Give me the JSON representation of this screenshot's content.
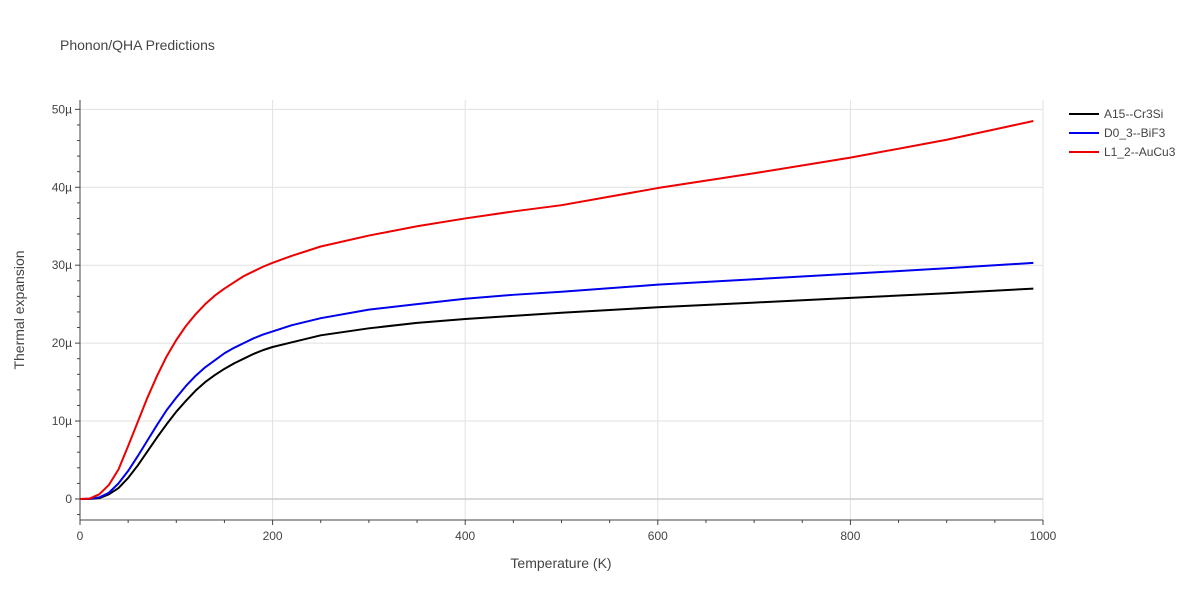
{
  "chart_data": {
    "type": "line",
    "title": "Phonon/QHA Predictions",
    "xlabel": "Temperature (K)",
    "ylabel": "Thermal expansion",
    "xlim": [
      0,
      1000
    ],
    "ylim": [
      -2.7e-06,
      5.12e-05
    ],
    "x_ticks": [
      {
        "value": 0,
        "label": "0"
      },
      {
        "value": 200,
        "label": "200"
      },
      {
        "value": 400,
        "label": "400"
      },
      {
        "value": 600,
        "label": "600"
      },
      {
        "value": 800,
        "label": "800"
      },
      {
        "value": 1000,
        "label": "1000"
      }
    ],
    "y_ticks": [
      {
        "value": 0,
        "label": "0"
      },
      {
        "value": 1e-05,
        "label": "10µ"
      },
      {
        "value": 2e-05,
        "label": "20µ"
      },
      {
        "value": 3e-05,
        "label": "30µ"
      },
      {
        "value": 4e-05,
        "label": "40µ"
      },
      {
        "value": 5e-05,
        "label": "50µ"
      }
    ],
    "grid": true,
    "legend_position": "top-right",
    "series": [
      {
        "name": "A15--Cr3Si",
        "color": "#000000",
        "x": [
          0,
          10,
          20,
          30,
          40,
          50,
          60,
          70,
          80,
          90,
          100,
          110,
          120,
          130,
          140,
          150,
          160,
          170,
          180,
          190,
          200,
          220,
          250,
          300,
          350,
          400,
          450,
          500,
          600,
          700,
          800,
          900,
          990
        ],
        "y": [
          0,
          1e-08,
          1e-07,
          6e-07,
          1.4e-06,
          2.7e-06,
          4.3e-06,
          6.1e-06,
          7.9e-06,
          9.6e-06,
          1.12e-05,
          1.26e-05,
          1.39e-05,
          1.5e-05,
          1.59e-05,
          1.67e-05,
          1.74e-05,
          1.8e-05,
          1.86e-05,
          1.91e-05,
          1.95e-05,
          2.01e-05,
          2.1e-05,
          2.19e-05,
          2.26e-05,
          2.31e-05,
          2.35e-05,
          2.39e-05,
          2.46e-05,
          2.52e-05,
          2.58e-05,
          2.64e-05,
          2.7e-05
        ]
      },
      {
        "name": "D0_3--BiF3",
        "color": "#0000ee",
        "x": [
          0,
          10,
          20,
          30,
          40,
          50,
          60,
          70,
          80,
          90,
          100,
          110,
          120,
          130,
          140,
          150,
          160,
          170,
          180,
          190,
          200,
          220,
          250,
          300,
          350,
          400,
          450,
          500,
          600,
          700,
          800,
          900,
          990
        ],
        "y": [
          0,
          2e-08,
          2e-07,
          8e-07,
          2e-06,
          3.6e-06,
          5.5e-06,
          7.5e-06,
          9.5e-06,
          1.14e-05,
          1.3e-05,
          1.45e-05,
          1.58e-05,
          1.69e-05,
          1.78e-05,
          1.87e-05,
          1.94e-05,
          2e-05,
          2.06e-05,
          2.11e-05,
          2.15e-05,
          2.23e-05,
          2.32e-05,
          2.43e-05,
          2.5e-05,
          2.57e-05,
          2.62e-05,
          2.66e-05,
          2.75e-05,
          2.82e-05,
          2.89e-05,
          2.96e-05,
          3.03e-05
        ]
      },
      {
        "name": "L1_2--AuCu3",
        "color": "#ee0000",
        "x": [
          0,
          10,
          20,
          30,
          40,
          50,
          60,
          70,
          80,
          90,
          100,
          110,
          120,
          130,
          140,
          150,
          160,
          170,
          180,
          190,
          200,
          220,
          250,
          300,
          350,
          400,
          450,
          500,
          600,
          700,
          800,
          900,
          990
        ],
        "y": [
          0,
          5e-08,
          6e-07,
          1.8e-06,
          3.8e-06,
          6.8e-06,
          9.9e-06,
          1.3e-05,
          1.58e-05,
          1.83e-05,
          2.04e-05,
          2.22e-05,
          2.37e-05,
          2.5e-05,
          2.61e-05,
          2.7e-05,
          2.78e-05,
          2.86e-05,
          2.92e-05,
          2.98e-05,
          3.03e-05,
          3.12e-05,
          3.24e-05,
          3.38e-05,
          3.5e-05,
          3.6e-05,
          3.69e-05,
          3.77e-05,
          3.99e-05,
          4.18e-05,
          4.38e-05,
          4.61e-05,
          4.85e-05
        ]
      }
    ]
  }
}
